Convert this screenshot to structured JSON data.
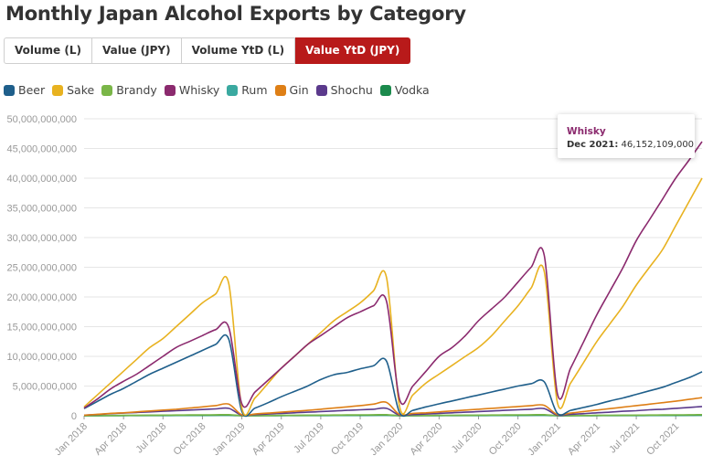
{
  "title": "Monthly Japan Alcohol Exports by Category",
  "tabs": [
    {
      "label": "Volume (L)",
      "active": false
    },
    {
      "label": "Value (JPY)",
      "active": false
    },
    {
      "label": "Volume YtD (L)",
      "active": false
    },
    {
      "label": "Value YtD (JPY)",
      "active": true
    }
  ],
  "legend": [
    {
      "name": "Beer",
      "color": "#1f5f8b"
    },
    {
      "name": "Sake",
      "color": "#e8b220"
    },
    {
      "name": "Brandy",
      "color": "#7ab648"
    },
    {
      "name": "Whisky",
      "color": "#8b2a6e"
    },
    {
      "name": "Rum",
      "color": "#3aa9a0"
    },
    {
      "name": "Gin",
      "color": "#de7f16"
    },
    {
      "name": "Shochu",
      "color": "#5b3a8c"
    },
    {
      "name": "Vodka",
      "color": "#1b8a4c"
    }
  ],
  "tooltip": {
    "series": "Whisky",
    "color": "#8b2a6e",
    "date": "Dec 2021:",
    "value": "46,152,109,000"
  },
  "chart_data": {
    "type": "line",
    "x": [
      "Jan 2018",
      "Feb 2018",
      "Mar 2018",
      "Apr 2018",
      "May 2018",
      "Jun 2018",
      "Jul 2018",
      "Aug 2018",
      "Sep 2018",
      "Oct 2018",
      "Nov 2018",
      "Dec 2018",
      "Jan 2019",
      "Feb 2019",
      "Mar 2019",
      "Apr 2019",
      "May 2019",
      "Jun 2019",
      "Jul 2019",
      "Aug 2019",
      "Sep 2019",
      "Oct 2019",
      "Nov 2019",
      "Dec 2019",
      "Jan 2020",
      "Feb 2020",
      "Mar 2020",
      "Apr 2020",
      "May 2020",
      "Jun 2020",
      "Jul 2020",
      "Aug 2020",
      "Sep 2020",
      "Oct 2020",
      "Nov 2020",
      "Dec 2020",
      "Jan 2021",
      "Feb 2021",
      "Mar 2021",
      "Apr 2021",
      "May 2021",
      "Jun 2021",
      "Jul 2021",
      "Aug 2021",
      "Sep 2021",
      "Oct 2021",
      "Nov 2021",
      "Dec 2021"
    ],
    "x_tick_labels": [
      "Jan 2018",
      "Apr 2018",
      "Jul 2018",
      "Oct 2018",
      "Jan 2019",
      "Apr 2019",
      "Jul 2019",
      "Oct 2019",
      "Jan 2020",
      "Apr 2020",
      "Jul 2020",
      "Oct 2020",
      "Jan 2021",
      "Apr 2021",
      "Jul 2021",
      "Oct 2021"
    ],
    "y_tick_labels": [
      "0",
      "5,000,000,000",
      "10,000,000,000",
      "15,000,000,000",
      "20,000,000,000",
      "25,000,000,000",
      "30,000,000,000",
      "35,000,000,000",
      "40,000,000,000",
      "45,000,000,000",
      "50,000,000,000"
    ],
    "ylim": [
      0,
      50000000000
    ],
    "grid": true,
    "legend_position": "top-left",
    "series": [
      {
        "name": "Beer",
        "color": "#1f5f8b",
        "values": [
          1200000000,
          2400000000,
          3600000000,
          4600000000,
          5800000000,
          7000000000,
          8000000000,
          9000000000,
          10000000000,
          11000000000,
          12000000000,
          12900000000,
          700000000,
          1300000000,
          2200000000,
          3200000000,
          4100000000,
          5000000000,
          6100000000,
          6900000000,
          7300000000,
          7900000000,
          8400000000,
          9200000000,
          500000000,
          900000000,
          1500000000,
          2000000000,
          2500000000,
          3000000000,
          3500000000,
          4000000000,
          4500000000,
          5000000000,
          5400000000,
          5700000000,
          400000000,
          900000000,
          1400000000,
          1900000000,
          2500000000,
          3000000000,
          3600000000,
          4200000000,
          4800000000,
          5600000000,
          6400000000,
          7400000000
        ]
      },
      {
        "name": "Sake",
        "color": "#e8b220",
        "values": [
          1500000000,
          3500000000,
          5500000000,
          7500000000,
          9500000000,
          11500000000,
          13000000000,
          15000000000,
          17000000000,
          19000000000,
          20500000000,
          22300000000,
          1300000000,
          3000000000,
          5500000000,
          8000000000,
          10000000000,
          12000000000,
          14000000000,
          16000000000,
          17500000000,
          19000000000,
          21000000000,
          23300000000,
          1500000000,
          3500000000,
          5500000000,
          7000000000,
          8500000000,
          10000000000,
          11500000000,
          13500000000,
          16000000000,
          18500000000,
          21500000000,
          24300000000,
          2200000000,
          5500000000,
          9000000000,
          12500000000,
          15500000000,
          18500000000,
          22000000000,
          25000000000,
          28000000000,
          32000000000,
          36000000000,
          40000000000
        ]
      },
      {
        "name": "Brandy",
        "color": "#7ab648",
        "values": [
          15000000,
          30000000,
          45000000,
          60000000,
          75000000,
          90000000,
          105000000,
          120000000,
          135000000,
          150000000,
          165000000,
          180000000,
          15000000,
          30000000,
          45000000,
          60000000,
          75000000,
          90000000,
          105000000,
          120000000,
          135000000,
          150000000,
          165000000,
          180000000,
          15000000,
          30000000,
          45000000,
          60000000,
          75000000,
          90000000,
          105000000,
          120000000,
          135000000,
          150000000,
          165000000,
          180000000,
          15000000,
          30000000,
          45000000,
          60000000,
          75000000,
          90000000,
          105000000,
          120000000,
          135000000,
          150000000,
          165000000,
          180000000
        ]
      },
      {
        "name": "Whisky",
        "color": "#8b2a6e",
        "values": [
          1300000000,
          2800000000,
          4500000000,
          5800000000,
          7000000000,
          8500000000,
          10000000000,
          11500000000,
          12500000000,
          13500000000,
          14500000000,
          14900000000,
          2000000000,
          4000000000,
          6000000000,
          8000000000,
          10000000000,
          12000000000,
          13500000000,
          15000000000,
          16500000000,
          17500000000,
          18500000000,
          19300000000,
          2700000000,
          5000000000,
          7500000000,
          10000000000,
          11500000000,
          13500000000,
          16000000000,
          18000000000,
          20000000000,
          22500000000,
          25000000000,
          27000000000,
          3700000000,
          8000000000,
          12500000000,
          17000000000,
          21000000000,
          25000000000,
          29500000000,
          33000000000,
          36500000000,
          40000000000,
          43000000000,
          46152109000
        ]
      },
      {
        "name": "Rum",
        "color": "#3aa9a0",
        "values": [
          5000000,
          10000000,
          15000000,
          20000000,
          25000000,
          30000000,
          35000000,
          40000000,
          45000000,
          50000000,
          55000000,
          60000000,
          5000000,
          10000000,
          15000000,
          20000000,
          25000000,
          30000000,
          35000000,
          40000000,
          45000000,
          50000000,
          55000000,
          60000000,
          5000000,
          10000000,
          15000000,
          20000000,
          25000000,
          30000000,
          35000000,
          40000000,
          45000000,
          50000000,
          55000000,
          60000000,
          5000000,
          10000000,
          15000000,
          20000000,
          25000000,
          30000000,
          35000000,
          40000000,
          45000000,
          50000000,
          55000000,
          60000000
        ]
      },
      {
        "name": "Gin",
        "color": "#de7f16",
        "values": [
          100000000,
          250000000,
          400000000,
          500000000,
          650000000,
          800000000,
          950000000,
          1100000000,
          1300000000,
          1500000000,
          1700000000,
          1950000000,
          150000000,
          300000000,
          450000000,
          600000000,
          750000000,
          900000000,
          1100000000,
          1300000000,
          1500000000,
          1700000000,
          1950000000,
          2250000000,
          200000000,
          400000000,
          500000000,
          650000000,
          800000000,
          950000000,
          1100000000,
          1250000000,
          1400000000,
          1550000000,
          1700000000,
          1750000000,
          200000000,
          450000000,
          700000000,
          950000000,
          1200000000,
          1450000000,
          1700000000,
          1950000000,
          2200000000,
          2450000000,
          2750000000,
          3050000000
        ]
      },
      {
        "name": "Shochu",
        "color": "#5b3a8c",
        "values": [
          100000000,
          200000000,
          350000000,
          450000000,
          550000000,
          650000000,
          750000000,
          850000000,
          950000000,
          1050000000,
          1150000000,
          1250000000,
          100000000,
          200000000,
          300000000,
          400000000,
          500000000,
          600000000,
          700000000,
          800000000,
          900000000,
          1000000000,
          1100000000,
          1250000000,
          100000000,
          200000000,
          300000000,
          400000000,
          500000000,
          600000000,
          700000000,
          800000000,
          900000000,
          1000000000,
          1100000000,
          1200000000,
          100000000,
          250000000,
          350000000,
          500000000,
          600000000,
          750000000,
          850000000,
          1000000000,
          1100000000,
          1250000000,
          1400000000,
          1550000000
        ]
      },
      {
        "name": "Vodka",
        "color": "#1b8a4c",
        "values": [
          10000000,
          20000000,
          30000000,
          40000000,
          50000000,
          60000000,
          70000000,
          80000000,
          90000000,
          100000000,
          110000000,
          120000000,
          10000000,
          20000000,
          30000000,
          40000000,
          50000000,
          60000000,
          70000000,
          80000000,
          90000000,
          100000000,
          110000000,
          120000000,
          10000000,
          20000000,
          30000000,
          40000000,
          50000000,
          60000000,
          70000000,
          80000000,
          90000000,
          100000000,
          110000000,
          120000000,
          10000000,
          20000000,
          30000000,
          40000000,
          50000000,
          60000000,
          70000000,
          80000000,
          90000000,
          100000000,
          110000000,
          120000000
        ]
      }
    ]
  }
}
